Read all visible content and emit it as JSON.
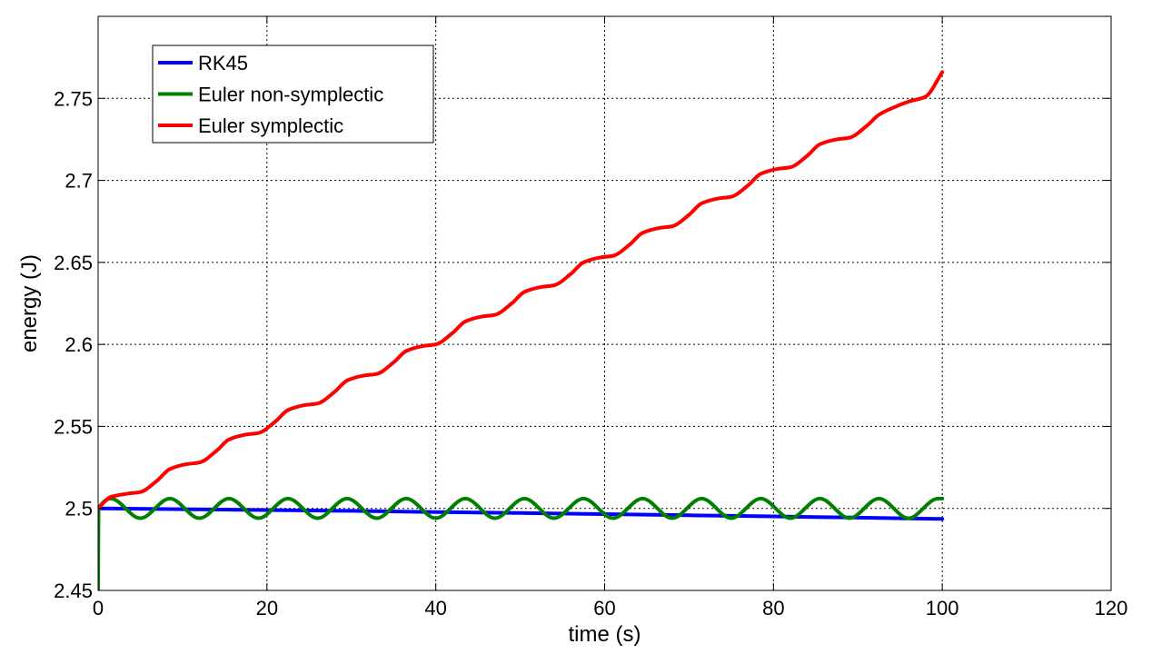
{
  "chart_data": {
    "type": "line",
    "title": "",
    "xlabel": "time (s)",
    "ylabel": "energy (J)",
    "xlim": [
      0,
      120
    ],
    "ylim": [
      2.45,
      2.8
    ],
    "xticks": [
      0,
      20,
      40,
      60,
      80,
      100,
      120
    ],
    "xtick_labels": [
      "0",
      "20",
      "40",
      "60",
      "80",
      "100",
      "120"
    ],
    "yticks": [
      2.45,
      2.5,
      2.55,
      2.6,
      2.65,
      2.7,
      2.75
    ],
    "ytick_labels": [
      "2.45",
      "2.5",
      "2.55",
      "2.6",
      "2.65",
      "2.7",
      "2.75"
    ],
    "grid": true,
    "legend_position": "top-left",
    "series": [
      {
        "name": "RK45",
        "color": "#0000ff",
        "x": [
          0,
          10,
          20,
          30,
          40,
          50,
          60,
          70,
          80,
          90,
          100
        ],
        "y": [
          2.5,
          2.4995,
          2.499,
          2.4985,
          2.4978,
          2.4972,
          2.4965,
          2.4958,
          2.4951,
          2.4944,
          2.4936
        ]
      },
      {
        "name": "Euler non-symplectic",
        "color": "#007f00",
        "x": [
          0,
          0.05,
          1.5,
          5,
          8.5,
          12,
          15.5,
          19,
          22.5,
          26,
          29.5,
          33,
          36.5,
          40,
          43.5,
          47,
          50.5,
          54,
          57.5,
          61,
          64.5,
          68,
          71.5,
          75,
          78.5,
          82,
          85.5,
          89,
          92.5,
          96,
          99.5,
          100
        ],
        "y": [
          2.45,
          2.5,
          2.506,
          2.494,
          2.506,
          2.494,
          2.506,
          2.494,
          2.506,
          2.494,
          2.506,
          2.494,
          2.506,
          2.494,
          2.506,
          2.494,
          2.506,
          2.494,
          2.506,
          2.494,
          2.506,
          2.494,
          2.506,
          2.494,
          2.506,
          2.494,
          2.506,
          2.494,
          2.506,
          2.494,
          2.506,
          2.506
        ]
      },
      {
        "name": "Euler symplectic",
        "color": "#ff0000",
        "x": [
          0,
          1.5,
          3.5,
          5,
          7,
          8.5,
          10.5,
          12,
          14,
          15.5,
          17.5,
          19,
          21,
          22.5,
          24.5,
          26,
          28,
          29.5,
          31.5,
          33,
          35,
          36.5,
          38.5,
          40,
          42,
          43.5,
          45.5,
          47,
          49,
          50.5,
          52.5,
          54,
          56,
          57.5,
          59.5,
          61,
          63,
          64.5,
          66.5,
          68,
          70,
          71.5,
          73.5,
          75,
          77,
          78.5,
          80.5,
          82,
          84,
          85.5,
          87.5,
          89,
          91,
          92.5,
          94.5,
          96,
          98,
          100
        ],
        "y": [
          2.5,
          2.507,
          2.509,
          2.51,
          2.517,
          2.524,
          2.527,
          2.528,
          2.535,
          2.542,
          2.545,
          2.546,
          2.553,
          2.56,
          2.563,
          2.564,
          2.571,
          2.578,
          2.581,
          2.582,
          2.589,
          2.596,
          2.599,
          2.6,
          2.607,
          2.614,
          2.617,
          2.618,
          2.625,
          2.632,
          2.635,
          2.636,
          2.643,
          2.65,
          2.653,
          2.654,
          2.661,
          2.668,
          2.671,
          2.672,
          2.679,
          2.686,
          2.689,
          2.69,
          2.697,
          2.704,
          2.707,
          2.708,
          2.715,
          2.722,
          2.725,
          2.726,
          2.733,
          2.74,
          2.745,
          2.748,
          2.751,
          2.766
        ]
      }
    ]
  }
}
